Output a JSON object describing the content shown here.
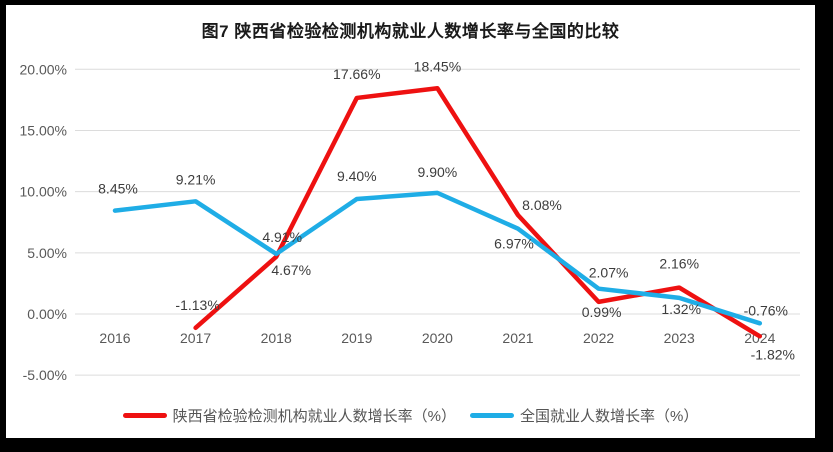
{
  "chart_data": {
    "type": "line",
    "title": "图7 陕西省检验检测机构就业人数增长率与全国的比较",
    "categories": [
      "2016",
      "2017",
      "2018",
      "2019",
      "2020",
      "2021",
      "2022",
      "2023",
      "2024"
    ],
    "series": [
      {
        "name": "陕西省检验检测机构就业人数增长率（%）",
        "color": "#ee1111",
        "values": [
          null,
          -1.13,
          4.67,
          17.66,
          18.45,
          8.08,
          0.99,
          2.16,
          -1.82
        ]
      },
      {
        "name": "全国就业人数增长率（%）",
        "color": "#1fade6",
        "values": [
          8.45,
          9.21,
          4.91,
          9.4,
          9.9,
          6.97,
          2.07,
          1.32,
          -0.76
        ]
      }
    ],
    "ylim": [
      -5,
      20
    ],
    "yticks": [
      20,
      15,
      10,
      5,
      0,
      -5
    ],
    "ytick_labels": [
      "20.00%",
      "15.00%",
      "10.00%",
      "5.00%",
      "0.00%",
      "-5.00%"
    ],
    "grid": true,
    "legend_position": "bottom",
    "value_label_format": "0.00%"
  },
  "colors": {
    "background_frame": "#000000",
    "card": "#ffffff",
    "gridline": "#dcdcdc",
    "axis_text": "#595959",
    "data_label": "#3d3d3d"
  }
}
